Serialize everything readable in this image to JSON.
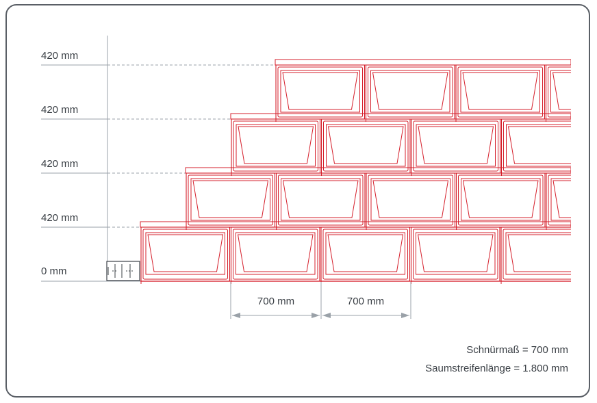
{
  "diagram": {
    "row_labels": [
      "420 mm",
      "420 mm",
      "420 mm",
      "420 mm",
      "0 mm"
    ],
    "dimension_labels": [
      "700 mm",
      "700 mm"
    ],
    "notes": [
      "Schnürmaß = 700 mm",
      "Saumstreifenlänge = 1.800 mm"
    ],
    "colors": {
      "stone": "#d51f2b",
      "guide": "#9aa1a8",
      "dimension": "#9aa1a8",
      "text": "#3b4046",
      "frame": "#5a5f66"
    }
  }
}
